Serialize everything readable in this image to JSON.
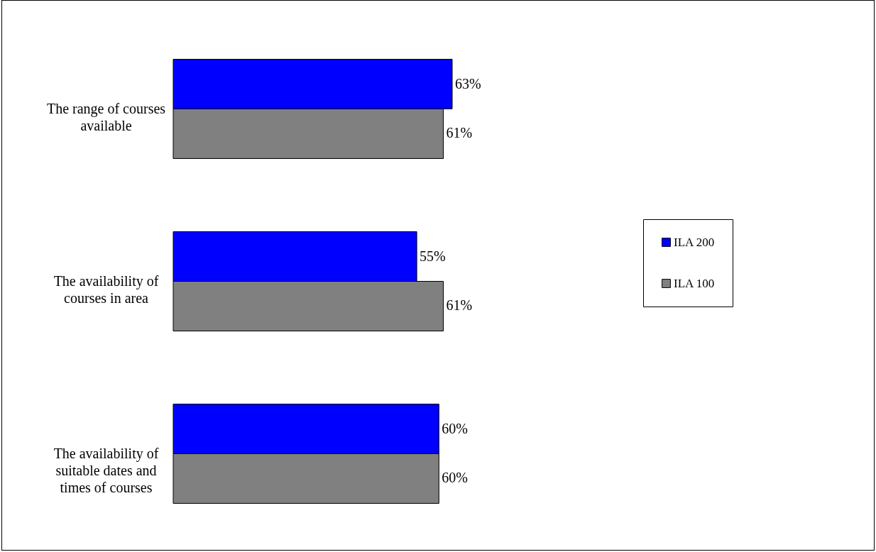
{
  "chart_data": {
    "type": "bar",
    "orientation": "horizontal",
    "categories": [
      "The range of courses available",
      "The availability of courses in area",
      "The availability of suitable dates and times of courses"
    ],
    "series": [
      {
        "name": "ILA 200",
        "color": "#0000ff",
        "values": [
          63,
          55,
          60
        ],
        "value_labels": [
          "63%",
          "55%",
          "60%"
        ]
      },
      {
        "name": "ILA 100",
        "color": "#808080",
        "values": [
          61,
          61,
          60
        ],
        "value_labels": [
          "61%",
          "61%",
          "60%"
        ]
      }
    ],
    "legend": "right",
    "grid": false
  }
}
